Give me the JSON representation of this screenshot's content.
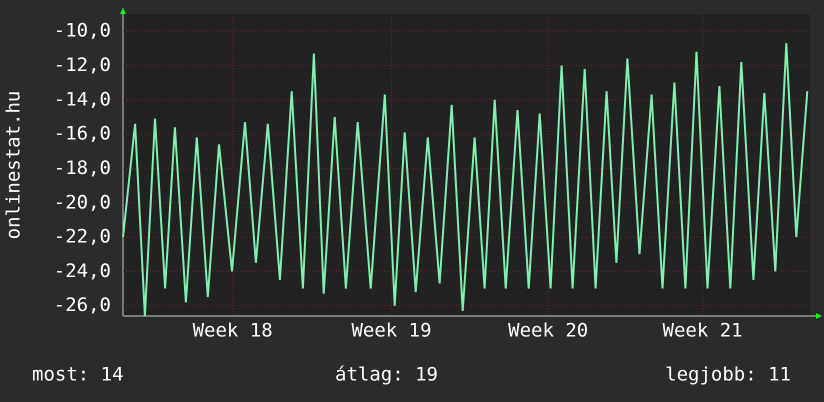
{
  "chart_data": {
    "type": "line",
    "y_label": "onlinestat.hu",
    "xlim": [
      0,
      30.7
    ],
    "xticks": [
      {
        "value": 4.9,
        "label": "Week 18"
      },
      {
        "value": 12.0,
        "label": "Week 19"
      },
      {
        "value": 19.0,
        "label": "Week 20"
      },
      {
        "value": 25.9,
        "label": "Week 21"
      }
    ],
    "ylim": [
      -26.6,
      -9.0
    ],
    "yticks": [
      {
        "value": -26,
        "label": "-26,0"
      },
      {
        "value": -24,
        "label": "-24,0"
      },
      {
        "value": -22,
        "label": "-22,0"
      },
      {
        "value": -20,
        "label": "-20,0"
      },
      {
        "value": -18,
        "label": "-18,0"
      },
      {
        "value": -16,
        "label": "-16,0"
      },
      {
        "value": -14,
        "label": "-14,0"
      },
      {
        "value": -12,
        "label": "-12,0"
      },
      {
        "value": -10,
        "label": "-10,0"
      }
    ],
    "grid": true,
    "series": [
      {
        "color": "#7ff0b0",
        "x": [
          0,
          0.54,
          0.98,
          1.43,
          1.88,
          2.32,
          2.81,
          3.3,
          3.79,
          4.29,
          4.87,
          5.45,
          5.94,
          6.47,
          7.01,
          7.54,
          8.04,
          8.53,
          8.97,
          9.46,
          9.96,
          10.49,
          11.07,
          11.7,
          12.14,
          12.59,
          13.08,
          13.62,
          14.15,
          14.69,
          15.18,
          15.71,
          16.16,
          16.61,
          17.1,
          17.63,
          18.13,
          18.62,
          19.11,
          19.6,
          20.09,
          20.63,
          21.12,
          21.61,
          22.05,
          22.54,
          23.08,
          23.62,
          24.11,
          24.64,
          25.13,
          25.63,
          26.12,
          26.65,
          27.14,
          27.63,
          28.17,
          28.66,
          29.15,
          29.64,
          30.09,
          30.58
        ],
        "values": [
          -22.0,
          -15.4,
          -26.6,
          -15.1,
          -25.0,
          -15.6,
          -25.8,
          -16.2,
          -25.5,
          -16.6,
          -24.0,
          -15.3,
          -23.5,
          -15.4,
          -24.5,
          -13.5,
          -25.0,
          -11.3,
          -25.3,
          -15.0,
          -25.0,
          -15.3,
          -25.0,
          -13.7,
          -26.0,
          -15.9,
          -25.2,
          -16.2,
          -24.7,
          -14.3,
          -26.3,
          -16.2,
          -25.0,
          -14.0,
          -25.0,
          -14.6,
          -25.0,
          -14.8,
          -25.0,
          -12.0,
          -25.0,
          -12.2,
          -25.0,
          -13.5,
          -23.5,
          -11.6,
          -23.0,
          -13.7,
          -25.0,
          -13.0,
          -25.0,
          -11.2,
          -25.0,
          -13.2,
          -25.0,
          -11.8,
          -24.5,
          -13.6,
          -24.0,
          -10.7,
          -22.0,
          -13.5
        ]
      }
    ],
    "footer": {
      "current": "most: 14",
      "average": "átlag: 19",
      "best": "legjobb: 11"
    }
  }
}
